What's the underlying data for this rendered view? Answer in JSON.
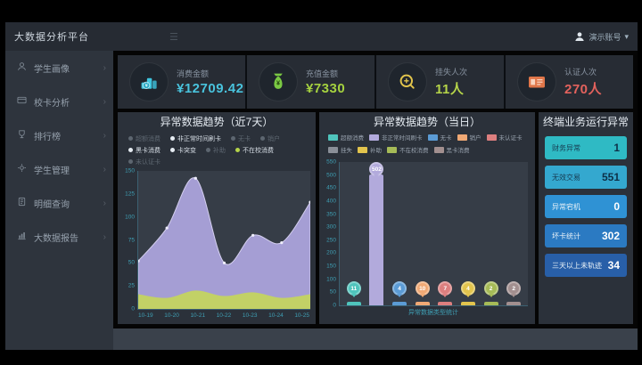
{
  "ui": {
    "chevron": "›",
    "caret": "▾",
    "hamburger": "☰"
  },
  "topbar": {
    "title": "大数据分析平台",
    "user_name": "演示账号"
  },
  "sidebar": {
    "items": [
      {
        "label": "学生画像",
        "icon": "user"
      },
      {
        "label": "校卡分析",
        "icon": "card"
      },
      {
        "label": "排行榜",
        "icon": "trophy"
      },
      {
        "label": "学生管理",
        "icon": "gear"
      },
      {
        "label": "明细查询",
        "icon": "doc"
      },
      {
        "label": "大数据报告",
        "icon": "report"
      }
    ]
  },
  "kpis": [
    {
      "label": "消费金额",
      "value": "¥12709.42",
      "value_color": "#49c3dd",
      "icon": "coins"
    },
    {
      "label": "充值金额",
      "value": "¥7330",
      "value_color": "#a5d23f",
      "icon": "moneybag"
    },
    {
      "label": "挂失人次",
      "value": "11人",
      "value_color": "#b6d549",
      "icon": "click"
    },
    {
      "label": "认证人次",
      "value": "270人",
      "value_color": "#e3625d",
      "icon": "idcard"
    }
  ],
  "left_panel": {
    "title": "异常数据趋势（近7天）",
    "legend_rows": [
      [
        {
          "label": "超额消费",
          "active": false
        },
        {
          "label": "非正常时间刷卡",
          "active": true
        },
        {
          "label": "无卡",
          "active": false
        },
        {
          "label": "销户",
          "active": false
        }
      ],
      [
        {
          "label": "黑卡消费",
          "active": true
        },
        {
          "label": "卡突变",
          "active": true
        },
        {
          "label": "补助",
          "active": false
        },
        {
          "label": "不在校消费",
          "active": true,
          "dot": "#b5d44a"
        }
      ],
      [
        {
          "label": "未认证卡",
          "active": false
        }
      ]
    ]
  },
  "mid_panel": {
    "title": "异常数据趋势（当日）",
    "caption": "异常数据类型统计"
  },
  "right_panel": {
    "title": "终端业务运行异常",
    "rows": [
      {
        "label": "财务异常",
        "value": "1",
        "bg": "#2fbac4",
        "dark": true
      },
      {
        "label": "无效交易",
        "value": "551",
        "bg": "#34a8cf",
        "dark": true
      },
      {
        "label": "异常宕机",
        "value": "0",
        "bg": "#2f92d4",
        "dark": false
      },
      {
        "label": "坏卡统计",
        "value": "302",
        "bg": "#2b7ac2",
        "dark": false
      },
      {
        "label": "三天以上未轨迹",
        "value": "34",
        "bg": "#285fa8",
        "dark": false
      }
    ]
  },
  "chart_data": [
    {
      "type": "area",
      "title": "异常数据趋势（近7天）",
      "x": [
        "10-19",
        "10-20",
        "10-21",
        "10-22",
        "10-23",
        "10-24",
        "10-25"
      ],
      "ylim": [
        0,
        150
      ],
      "yticks": [
        0,
        25,
        50,
        75,
        100,
        125,
        150
      ],
      "grid": false,
      "legend_position": "top",
      "series": [
        {
          "name": "非正常时间刷卡",
          "color": "#a59ed4",
          "values": [
            52,
            88,
            142,
            50,
            80,
            72,
            116
          ]
        },
        {
          "name": "不在校消费",
          "color": "#c2d166",
          "values": [
            16,
            12,
            20,
            14,
            18,
            12,
            16
          ]
        }
      ]
    },
    {
      "type": "bar",
      "title": "异常数据趋势（当日）",
      "ylim": [
        0,
        550
      ],
      "yticks": [
        0,
        50,
        100,
        150,
        200,
        250,
        300,
        350,
        400,
        450,
        500,
        550
      ],
      "categories": [
        "超额消费",
        "非正常时间刷卡",
        "无卡",
        "销户",
        "未认证卡",
        "补助",
        "不在校消费",
        "黑卡消费"
      ],
      "values": [
        11,
        502,
        4,
        10,
        7,
        4,
        2,
        2
      ],
      "colors": [
        "#4fc4bc",
        "#b2aadc",
        "#5b9bd5",
        "#f0a975",
        "#dd7f7f",
        "#e2c44d",
        "#a6bb57",
        "#a28f8f"
      ],
      "legend": [
        "超额消费",
        "非正常时间刷卡",
        "无卡",
        "销户",
        "未认证卡",
        "挂失",
        "补助",
        "不在校消费",
        "黑卡消费"
      ],
      "legend_colors": [
        "#4fc4bc",
        "#b2aadc",
        "#5b9bd5",
        "#f0a975",
        "#dd7f7f",
        "#8a8f98",
        "#e2c44d",
        "#a6bb57",
        "#a28f8f"
      ],
      "caption": "异常数据类型统计"
    }
  ]
}
